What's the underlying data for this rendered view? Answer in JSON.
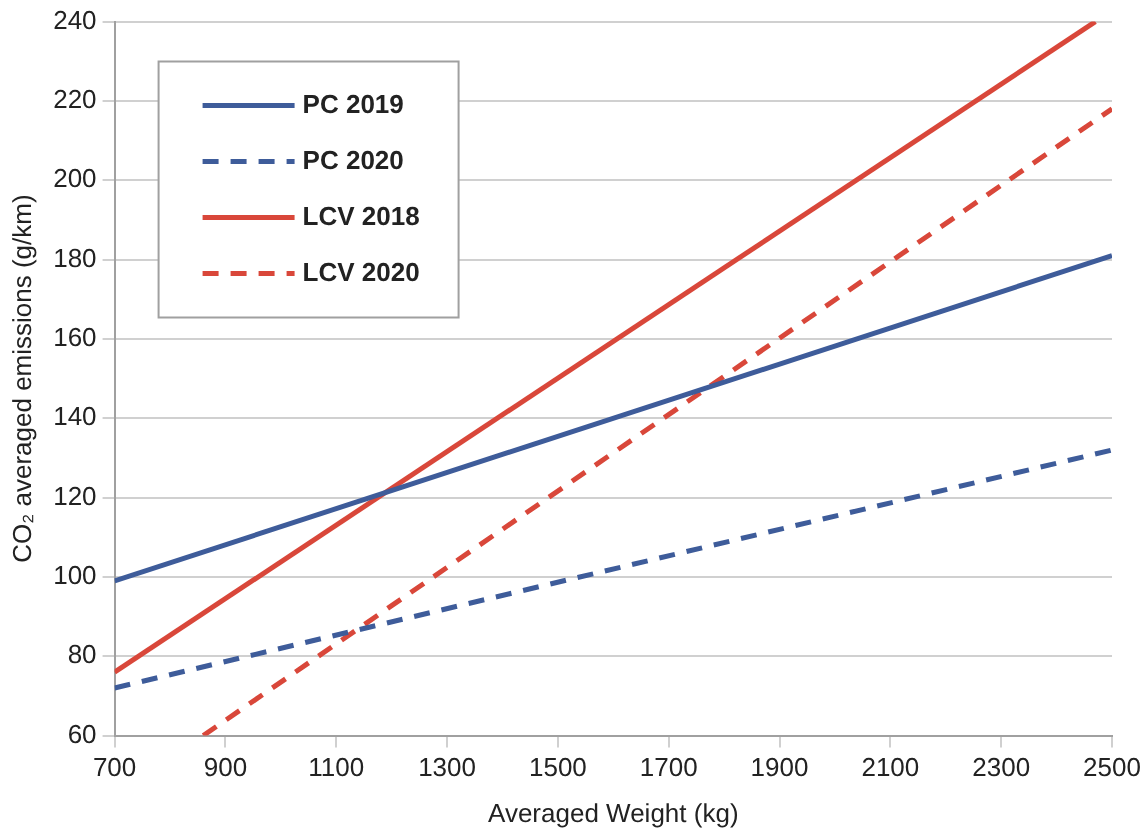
{
  "chart_data": {
    "type": "line",
    "xlabel": "Averaged Weight (kg)",
    "ylabel": "CO₂ averaged emissions (g/km)",
    "xlim": [
      700,
      2500
    ],
    "xticks": [
      700,
      900,
      1100,
      1300,
      1500,
      1700,
      1900,
      2100,
      2300,
      2500
    ],
    "ylim": [
      60,
      240
    ],
    "yticks": [
      60,
      80,
      100,
      120,
      140,
      160,
      180,
      200,
      220,
      240
    ],
    "grid": "y",
    "legend": "top left",
    "marker": "none",
    "series": [
      {
        "name": "PC 2019",
        "color": "#3e5c9a",
        "line_style": "solid",
        "x": [
          700,
          2500
        ],
        "values": [
          99,
          181
        ]
      },
      {
        "name": "PC 2020",
        "color": "#3e5c9a",
        "line_style": "dashed",
        "x": [
          700,
          2500
        ],
        "values": [
          72,
          132
        ]
      },
      {
        "name": "LCV 2018",
        "color": "#d9473a",
        "line_style": "solid",
        "x": [
          700,
          2470
        ],
        "values": [
          76,
          240
        ]
      },
      {
        "name": "LCV 2020",
        "color": "#d9473a",
        "line_style": "dashed",
        "x": [
          860,
          2500
        ],
        "values": [
          60,
          218
        ]
      }
    ]
  }
}
